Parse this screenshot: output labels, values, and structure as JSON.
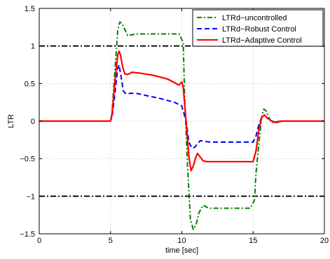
{
  "chart_data": {
    "type": "line",
    "title": "",
    "xlabel": "time [sec]",
    "ylabel": "LTR",
    "xlim": [
      0,
      20
    ],
    "ylim": [
      -1.5,
      1.5
    ],
    "xticks": [
      0,
      5,
      10,
      15,
      20
    ],
    "yticks": [
      -1.5,
      -1,
      -0.5,
      0,
      0.5,
      1,
      1.5
    ],
    "grid": true,
    "legend_position": "top-right",
    "threshold_lines": [
      1,
      -1
    ],
    "series": [
      {
        "name": "LTRd−uncontrolled",
        "color": "#008000",
        "style": "dash-dot",
        "x": [
          0,
          5.0,
          5.1,
          5.3,
          5.5,
          5.65,
          5.8,
          6.0,
          6.2,
          6.5,
          7.0,
          8.0,
          9.0,
          9.8,
          10.1,
          10.2,
          10.4,
          10.6,
          10.8,
          11.0,
          11.2,
          11.5,
          11.8,
          12.0,
          13.0,
          14.0,
          14.8,
          15.1,
          15.2,
          15.4,
          15.6,
          15.75,
          15.9,
          16.1,
          16.3,
          16.6,
          17.0,
          20
        ],
        "y": [
          0,
          0,
          0.1,
          0.65,
          1.2,
          1.32,
          1.3,
          1.22,
          1.14,
          1.15,
          1.16,
          1.16,
          1.16,
          1.16,
          1.05,
          0.3,
          -0.6,
          -1.3,
          -1.44,
          -1.38,
          -1.22,
          -1.12,
          -1.15,
          -1.16,
          -1.16,
          -1.16,
          -1.16,
          -1.05,
          -0.7,
          -0.3,
          0.05,
          0.16,
          0.14,
          0.05,
          -0.02,
          -0.01,
          0,
          0
        ]
      },
      {
        "name": "LTRd−Robust Control",
        "color": "#0000ff",
        "style": "dashed",
        "x": [
          0,
          5.0,
          5.1,
          5.3,
          5.5,
          5.6,
          5.75,
          5.9,
          6.1,
          6.4,
          6.8,
          7.5,
          8.5,
          9.5,
          10.0,
          10.3,
          10.5,
          10.7,
          10.9,
          11.1,
          11.3,
          11.6,
          12.0,
          13.0,
          14.0,
          15.0,
          15.2,
          15.4,
          15.6,
          15.8,
          16.0,
          16.3,
          16.6,
          17.0,
          20
        ],
        "y": [
          0,
          0,
          0.05,
          0.35,
          0.7,
          0.75,
          0.58,
          0.4,
          0.36,
          0.37,
          0.37,
          0.34,
          0.3,
          0.25,
          0.2,
          0.0,
          -0.28,
          -0.36,
          -0.35,
          -0.3,
          -0.26,
          -0.27,
          -0.28,
          -0.28,
          -0.28,
          -0.28,
          -0.2,
          -0.05,
          0.05,
          0.08,
          0.04,
          0.0,
          -0.01,
          0,
          0
        ]
      },
      {
        "name": "LTRd−Adaptive Control",
        "color": "#ff0000",
        "style": "solid",
        "x": [
          0,
          5.0,
          5.1,
          5.3,
          5.5,
          5.6,
          5.7,
          5.85,
          6.0,
          6.2,
          6.5,
          7.0,
          8.0,
          9.0,
          9.8,
          10.0,
          10.1,
          10.3,
          10.5,
          10.65,
          10.8,
          10.95,
          11.1,
          11.3,
          11.5,
          11.8,
          12.0,
          13.0,
          14.0,
          15.0,
          15.2,
          15.4,
          15.6,
          15.8,
          16.0,
          16.3,
          16.6,
          17.0,
          20
        ],
        "y": [
          0,
          0,
          0.08,
          0.5,
          0.88,
          0.93,
          0.88,
          0.72,
          0.63,
          0.62,
          0.65,
          0.64,
          0.61,
          0.56,
          0.48,
          0.52,
          0.45,
          0.0,
          -0.48,
          -0.66,
          -0.6,
          -0.5,
          -0.43,
          -0.48,
          -0.53,
          -0.54,
          -0.54,
          -0.54,
          -0.54,
          -0.54,
          -0.4,
          -0.12,
          0.05,
          0.08,
          0.04,
          0.0,
          -0.02,
          0,
          0
        ]
      }
    ]
  }
}
